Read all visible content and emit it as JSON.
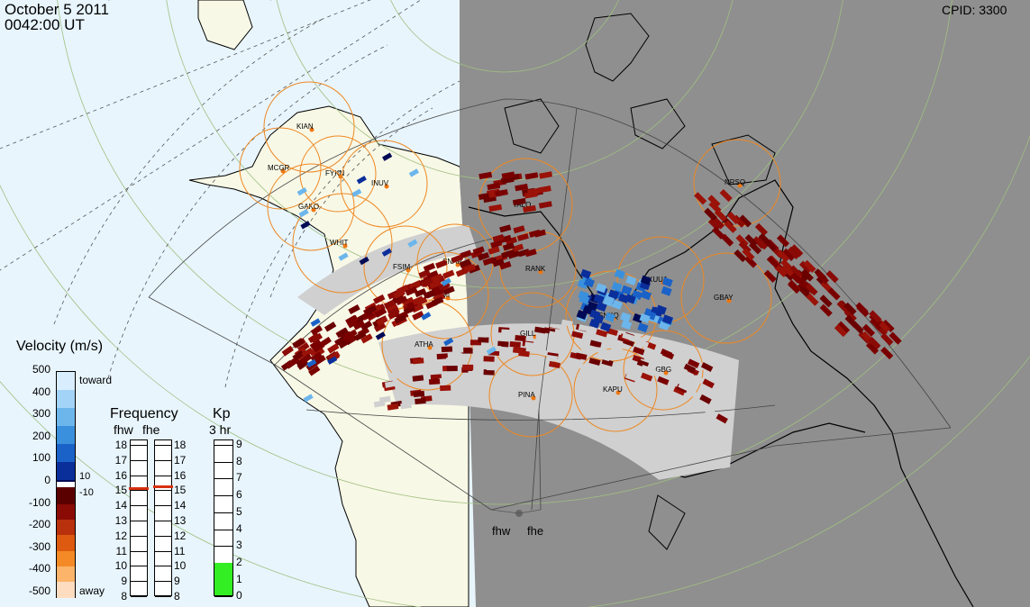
{
  "header": {
    "date": "October  5 2011",
    "time": "0042:00 UT",
    "cpid": "CPID:  3300"
  },
  "stations": [
    {
      "id": "KIAN",
      "label": "KIAN"
    },
    {
      "id": "MCGR",
      "label": "MCGR"
    },
    {
      "id": "FYKN",
      "label": "FYKN"
    },
    {
      "id": "INUV",
      "label": "INUV"
    },
    {
      "id": "GAKO",
      "label": "GAKO"
    },
    {
      "id": "WHIT",
      "label": "WHIT"
    },
    {
      "id": "FSIM",
      "label": "FSIM"
    },
    {
      "id": "SNAP",
      "label": "SNAP"
    },
    {
      "id": "FSMI",
      "label": "FSMI"
    },
    {
      "id": "TALO",
      "label": "TALO"
    },
    {
      "id": "RANK",
      "label": "RANK"
    },
    {
      "id": "KUUJ",
      "label": "KUUJ"
    },
    {
      "id": "NRSQ",
      "label": "NRSQ"
    },
    {
      "id": "GBAY",
      "label": "GBAY"
    },
    {
      "id": "SNKQ",
      "label": "SNKQ"
    },
    {
      "id": "GILL",
      "label": "GILL"
    },
    {
      "id": "ATHA",
      "label": "ATHA"
    },
    {
      "id": "PINA",
      "label": "PINA"
    },
    {
      "id": "KAPU",
      "label": "KAPU"
    },
    {
      "id": "PGBG",
      "label": "PGBG"
    }
  ],
  "radars": [
    "fhw",
    "fhe"
  ],
  "velocity_legend": {
    "title": "Velocity (m/s)",
    "ticks": [
      "500",
      "400",
      "300",
      "200",
      "100",
      "0",
      "-100",
      "-200",
      "-300",
      "-400",
      "-500"
    ],
    "toward": "toward",
    "away": "away",
    "plus10": "10",
    "minus10": "-10",
    "colors": [
      "#d8eeff",
      "#a3d3f7",
      "#6cb6ec",
      "#3a90dc",
      "#1a62c8",
      "#0a2e9a",
      "#000a55",
      "#5a0000",
      "#8a0a06",
      "#b8300c",
      "#dd5a10",
      "#f48a25",
      "#fbb46a",
      "#fedcc0"
    ]
  },
  "frequency_legend": {
    "title": "Frequency",
    "subtitle_a": "fhw",
    "subtitle_b": "fhe",
    "ticks": [
      "18",
      "17",
      "16",
      "15",
      "14",
      "13",
      "12",
      "11",
      "10",
      "9",
      "8"
    ],
    "fhw_value": 15.2,
    "fhe_value": 15.3
  },
  "kp_legend": {
    "title": "Kp",
    "subtitle": "3 hr",
    "ticks": [
      "9",
      "8",
      "7",
      "6",
      "5",
      "4",
      "3",
      "2",
      "1",
      "0"
    ],
    "value": 2,
    "fill_color": "#33ee22"
  },
  "colors": {
    "day_ocean": "#e8f5fd",
    "day_land": "#f8f8e6",
    "night": "#8f8f8f",
    "circle": "#ee8822",
    "latitude": "#a0c080",
    "longitude": "#555555",
    "gray_echo": "#d0d0d0"
  }
}
